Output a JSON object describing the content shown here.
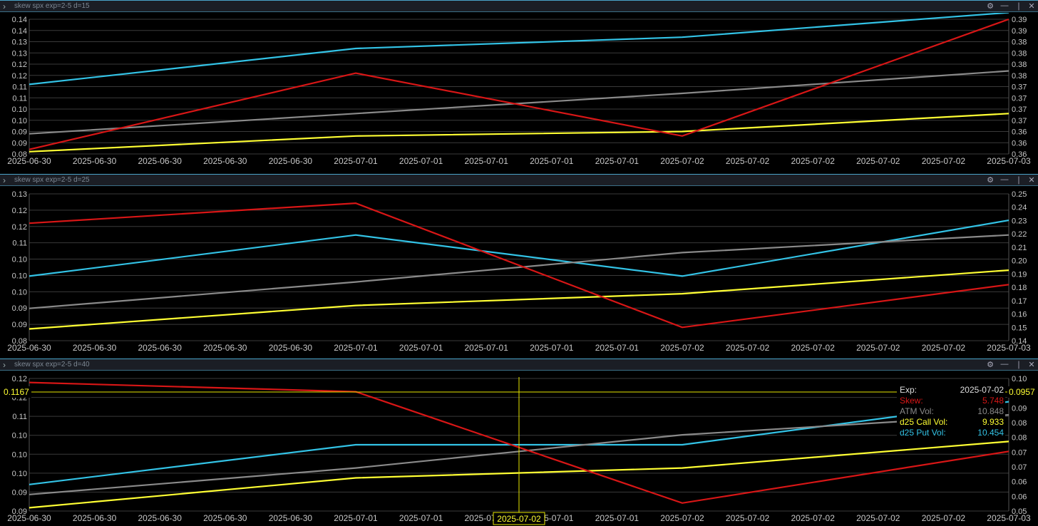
{
  "panels": [
    {
      "title": "skew spx exp=2-5 d=15",
      "left_ticks": [
        "0.14",
        "0.14",
        "0.13",
        "0.13",
        "0.12",
        "0.12",
        "0.11",
        "0.11",
        "0.10",
        "0.10",
        "0.09",
        "0.09",
        "0.08"
      ],
      "right_ticks": [
        "0.39",
        "0.39",
        "0.38",
        "0.38",
        "0.38",
        "0.38",
        "0.37",
        "0.37",
        "0.37",
        "0.37",
        "0.36",
        "0.36",
        "0.36"
      ],
      "x_ticks": [
        "2025-06-30",
        "2025-06-30",
        "2025-06-30",
        "2025-06-30",
        "2025-06-30",
        "2025-07-01",
        "2025-07-01",
        "2025-07-01",
        "2025-07-01",
        "2025-07-01",
        "2025-07-02",
        "2025-07-02",
        "2025-07-02",
        "2025-07-02",
        "2025-07-02",
        "2025-07-03"
      ]
    },
    {
      "title": "skew spx exp=2-5 d=25",
      "left_ticks": [
        "0.13",
        "0.12",
        "0.12",
        "0.11",
        "0.10",
        "0.10",
        "0.10",
        "0.09",
        "0.09",
        "0.08"
      ],
      "right_ticks": [
        "0.25",
        "0.24",
        "0.23",
        "0.22",
        "0.21",
        "0.20",
        "0.19",
        "0.18",
        "0.17",
        "0.16",
        "0.15",
        "0.14"
      ],
      "x_ticks": [
        "2025-06-30",
        "2025-06-30",
        "2025-06-30",
        "2025-06-30",
        "2025-06-30",
        "2025-07-01",
        "2025-07-01",
        "2025-07-01",
        "2025-07-01",
        "2025-07-01",
        "2025-07-02",
        "2025-07-02",
        "2025-07-02",
        "2025-07-02",
        "2025-07-02",
        "2025-07-03"
      ]
    },
    {
      "title": "skew spx exp=2-5 d=40",
      "left_ticks": [
        "0.12",
        "0.12",
        "0.11",
        "0.10",
        "0.10",
        "0.10",
        "0.09",
        "0.09"
      ],
      "right_ticks": [
        "0.10",
        "0.09",
        "0.09",
        "0.08",
        "0.08",
        "0.07",
        "0.07",
        "0.06",
        "0.06",
        "0.05"
      ],
      "x_ticks": [
        "2025-06-30",
        "2025-06-30",
        "2025-06-30",
        "2025-06-30",
        "2025-06-30",
        "2025-07-01",
        "2025-07-01",
        "2025-07-01",
        "2025-07-01",
        "2025-07-01",
        "2025-07-02",
        "2025-07-02",
        "2025-07-02",
        "2025-07-02",
        "2025-07-02",
        "2025-07-03"
      ],
      "crosshair": {
        "date_label": "2025-07-02",
        "left_value": "0.1167",
        "right_value": "0.0957"
      }
    }
  ],
  "tooltip": {
    "exp_label": "Exp:",
    "exp_value": "2025-07-02",
    "skew_label": "Skew:",
    "skew_value": "5.748",
    "atm_label": "ATM Vol:",
    "atm_value": "10.848",
    "call_label": "d25 Call Vol:",
    "call_value": "9.933",
    "put_label": "d25 Put Vol:",
    "put_value": "10.454"
  },
  "colors": {
    "skew": "#d81616",
    "atm": "#8a8a8a",
    "call": "#ffff33",
    "put": "#33c3e6",
    "accent": "#4aa3c8"
  },
  "chart_data": [
    {
      "type": "line",
      "title": "skew spx exp=2-5 d=15",
      "x": [
        "2025-06-30",
        "2025-07-01",
        "2025-07-02",
        "2025-07-03"
      ],
      "left_ylim": [
        0.08,
        0.14
      ],
      "right_ylim": [
        0.36,
        0.39
      ],
      "series": [
        {
          "name": "d25 Put Vol",
          "color": "put",
          "axis": "left",
          "values": [
            0.111,
            0.127,
            0.132,
            0.143
          ]
        },
        {
          "name": "ATM Vol",
          "color": "atm",
          "axis": "left",
          "values": [
            0.089,
            0.098,
            0.107,
            0.117
          ]
        },
        {
          "name": "d25 Call Vol",
          "color": "call",
          "axis": "left",
          "values": [
            0.081,
            0.088,
            0.09,
            0.098
          ]
        },
        {
          "name": "Skew",
          "color": "skew",
          "axis": "right",
          "values": [
            0.361,
            0.378,
            0.364,
            0.39
          ]
        }
      ]
    },
    {
      "type": "line",
      "title": "skew spx exp=2-5 d=25",
      "x": [
        "2025-06-30",
        "2025-07-01",
        "2025-07-02",
        "2025-07-03"
      ],
      "left_ylim": [
        0.08,
        0.13
      ],
      "right_ylim": [
        0.14,
        0.25
      ],
      "series": [
        {
          "name": "d25 Put Vol",
          "color": "put",
          "axis": "left",
          "values": [
            0.102,
            0.116,
            0.102,
            0.121
          ]
        },
        {
          "name": "ATM Vol",
          "color": "atm",
          "axis": "left",
          "values": [
            0.091,
            0.1,
            0.11,
            0.116
          ]
        },
        {
          "name": "d25 Call Vol",
          "color": "call",
          "axis": "left",
          "values": [
            0.084,
            0.092,
            0.096,
            0.104
          ]
        },
        {
          "name": "Skew",
          "color": "skew",
          "axis": "right",
          "values": [
            0.228,
            0.243,
            0.15,
            0.182
          ]
        }
      ]
    },
    {
      "type": "line",
      "title": "skew spx exp=2-5 d=40",
      "x": [
        "2025-06-30",
        "2025-07-01",
        "2025-07-02",
        "2025-07-03"
      ],
      "left_ylim": [
        0.085,
        0.125
      ],
      "right_ylim": [
        0.05,
        0.1
      ],
      "series": [
        {
          "name": "d25 Put Vol",
          "color": "put",
          "axis": "left",
          "values": [
            0.093,
            0.105,
            0.105,
            0.118
          ]
        },
        {
          "name": "ATM Vol",
          "color": "atm",
          "axis": "left",
          "values": [
            0.09,
            0.098,
            0.108,
            0.114
          ]
        },
        {
          "name": "d25 Call Vol",
          "color": "call",
          "axis": "left",
          "values": [
            0.086,
            0.095,
            0.098,
            0.106
          ]
        },
        {
          "name": "Skew",
          "color": "skew",
          "axis": "right",
          "values": [
            0.0985,
            0.095,
            0.053,
            0.0725
          ]
        }
      ]
    }
  ]
}
